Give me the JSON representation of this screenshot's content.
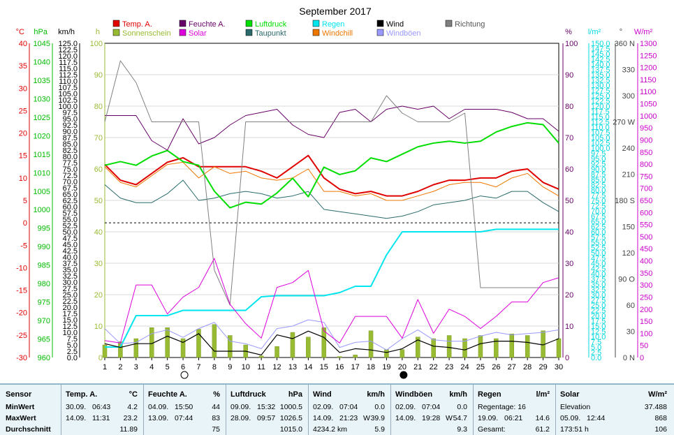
{
  "title": "September 2017",
  "legend": [
    {
      "label": "Temp. A.",
      "color": "#e00000"
    },
    {
      "label": "Feuchte A.",
      "color": "#660066"
    },
    {
      "label": "Luftdruck",
      "color": "#00dd00"
    },
    {
      "label": "Regen",
      "color": "#00e5ee"
    },
    {
      "label": "Wind",
      "color": "#000000"
    },
    {
      "label": "Richtung",
      "color": "#808080"
    },
    {
      "label": "Sonnenschein",
      "color": "#99bb33"
    },
    {
      "label": "Solar",
      "color": "#dd00dd"
    },
    {
      "label": "Taupunkt",
      "color": "#2a6a6a"
    },
    {
      "label": "Windchill",
      "color": "#ee7700"
    },
    {
      "label": "Windböen",
      "color": "#9999ff"
    }
  ],
  "units": {
    "temp": "°C",
    "press": "hPa",
    "wind": "km/h",
    "sun": "h",
    "hum": "%",
    "rain": "l/m²",
    "dir": "°",
    "solar": "W/m²"
  },
  "axes": {
    "temp": {
      "min": -30,
      "max": 40,
      "step": 5
    },
    "press": {
      "min": 960,
      "max": 1045,
      "step": 5
    },
    "wind": {
      "min": 0,
      "max": 125,
      "step": 2.5
    },
    "sun": {
      "min": 0,
      "max": 100,
      "step": 10
    },
    "hum": {
      "min": 0,
      "max": 100,
      "step": 10
    },
    "rain": {
      "min": 0,
      "max": 150,
      "step": 2.5
    },
    "dir": {
      "ticks": [
        {
          "v": 0,
          "l": "0 N"
        },
        {
          "v": 30,
          "l": "30"
        },
        {
          "v": 60,
          "l": "60"
        },
        {
          "v": 90,
          "l": "90 O"
        },
        {
          "v": 120,
          "l": "120"
        },
        {
          "v": 150,
          "l": "150"
        },
        {
          "v": 180,
          "l": "180 S"
        },
        {
          "v": 210,
          "l": "210"
        },
        {
          "v": 240,
          "l": "240"
        },
        {
          "v": 270,
          "l": "270 W"
        },
        {
          "v": 300,
          "l": "300"
        },
        {
          "v": 330,
          "l": "330"
        },
        {
          "v": 360,
          "l": "360 N"
        }
      ]
    },
    "solar": {
      "min": 0,
      "max": 1300,
      "step": 50
    }
  },
  "moon_phases": [
    {
      "day": 6,
      "phase": "full"
    },
    {
      "day": 20,
      "phase": "new"
    }
  ],
  "chart_data": {
    "type": "line",
    "title": "September 2017",
    "x": [
      1,
      2,
      3,
      4,
      5,
      6,
      7,
      8,
      9,
      10,
      11,
      12,
      13,
      14,
      15,
      16,
      17,
      18,
      19,
      20,
      21,
      22,
      23,
      24,
      25,
      26,
      27,
      28,
      29,
      30
    ],
    "series": [
      {
        "name": "Temp. A.",
        "unit": "°C",
        "axis": "temp",
        "values": [
          13.0,
          9.5,
          8.5,
          11.0,
          13.5,
          14.5,
          12.5,
          12.5,
          12.5,
          12.5,
          11.5,
          10.0,
          12.5,
          15.0,
          10.0,
          7.5,
          6.5,
          7.0,
          6.0,
          6.0,
          7.0,
          8.5,
          9.5,
          9.5,
          10.0,
          10.0,
          11.5,
          12.0,
          9.0,
          7.5
        ]
      },
      {
        "name": "Windchill",
        "unit": "°C",
        "axis": "temp",
        "values": [
          12.5,
          9.0,
          8.0,
          10.5,
          13.0,
          13.5,
          10.0,
          12.5,
          11.0,
          11.5,
          10.0,
          9.5,
          10.0,
          12.0,
          7.0,
          7.0,
          6.0,
          6.5,
          5.0,
          5.0,
          6.0,
          7.0,
          8.5,
          9.0,
          9.0,
          8.0,
          10.0,
          11.0,
          8.0,
          6.0
        ]
      },
      {
        "name": "Taupunkt",
        "unit": "°C",
        "axis": "temp",
        "values": [
          8.5,
          5.5,
          4.5,
          4.5,
          6.5,
          9.5,
          5.0,
          5.5,
          6.5,
          7.0,
          6.5,
          5.5,
          6.0,
          7.0,
          3.0,
          2.5,
          2.0,
          1.5,
          1.0,
          1.5,
          2.5,
          4.0,
          4.5,
          5.0,
          6.0,
          5.5,
          7.0,
          7.0,
          4.5,
          2.5
        ]
      },
      {
        "name": "Luftdruck",
        "unit": "hPa",
        "axis": "press",
        "values": [
          1012,
          1013,
          1012,
          1014.5,
          1016,
          1013,
          1012,
          1005,
          1000.5,
          1002,
          1001.5,
          1004.5,
          1008.5,
          1003.5,
          1011.5,
          1009.5,
          1010.5,
          1014,
          1013,
          1015,
          1017,
          1018,
          1018.5,
          1018,
          1018.5,
          1021,
          1022.5,
          1023.5,
          1023,
          1018
        ]
      },
      {
        "name": "Feuchte A.",
        "unit": "%",
        "axis": "hum",
        "values": [
          77,
          77,
          77,
          69,
          66,
          76,
          68,
          70,
          74,
          77,
          78,
          79,
          74,
          71,
          70,
          78,
          79,
          75,
          79,
          80,
          79,
          80,
          76,
          79,
          79,
          79,
          78,
          76,
          76,
          72
        ]
      },
      {
        "name": "Richtung",
        "unit": "°",
        "axis": "dir",
        "values": [
          270,
          340,
          315,
          270,
          270,
          270,
          270,
          100,
          60,
          270,
          270,
          270,
          270,
          270,
          270,
          270,
          270,
          270,
          300,
          280,
          270,
          270,
          270,
          280,
          80,
          80,
          80,
          80,
          80,
          80
        ]
      },
      {
        "name": "Regen",
        "unit": "l/m²",
        "axis": "rain",
        "values": [
          5.0,
          5.0,
          20.0,
          20.0,
          20.0,
          22.5,
          22.5,
          22.5,
          22.5,
          22.5,
          29.0,
          29.5,
          29.5,
          29.5,
          29.5,
          31.0,
          34.0,
          34.0,
          49.0,
          60.0,
          60.0,
          60.0,
          60.0,
          60.0,
          60.0,
          61.2,
          61.2,
          61.2,
          61.2,
          61.2
        ]
      },
      {
        "name": "Wind",
        "unit": "km/h",
        "axis": "wind",
        "values": [
          5.5,
          4.0,
          5.5,
          5.5,
          8.5,
          6.0,
          9.5,
          2.5,
          2.5,
          2.5,
          1.0,
          9.0,
          7.5,
          10.5,
          8.0,
          2.0,
          3.5,
          3.0,
          2.0,
          3.5,
          7.0,
          4.5,
          4.0,
          3.0,
          5.5,
          6.5,
          6.5,
          6.0,
          5.0,
          7.5
        ]
      },
      {
        "name": "Windböen",
        "unit": "km/h",
        "axis": "wind",
        "values": [
          11.5,
          5.5,
          6.0,
          9.5,
          11.0,
          8.0,
          11.5,
          14.0,
          6.5,
          5.5,
          3.5,
          11.5,
          12.5,
          15.0,
          14.0,
          4.0,
          6.0,
          6.5,
          3.0,
          7.5,
          11.0,
          7.0,
          6.5,
          6.5,
          8.5,
          10.0,
          9.0,
          9.5,
          10.0,
          11.0
        ]
      },
      {
        "name": "Solar",
        "unit": "W/m²",
        "axis": "solar",
        "values": [
          70,
          60,
          300,
          300,
          180,
          250,
          290,
          410,
          220,
          140,
          80,
          290,
          310,
          360,
          110,
          60,
          170,
          170,
          170,
          80,
          240,
          100,
          200,
          170,
          120,
          170,
          230,
          230,
          310,
          330
        ]
      },
      {
        "name": "Sonnenschein",
        "type": "bar",
        "unit": "h",
        "axis": "sun",
        "values": [
          4.0,
          5.0,
          6.0,
          9.5,
          9.5,
          6.0,
          9.0,
          10.5,
          7.0,
          4.0,
          0.5,
          3.5,
          8.0,
          6.5,
          9.5,
          0.3,
          0.8,
          8.5,
          2.5,
          2.5,
          6.5,
          6.0,
          7.0,
          6.0,
          7.0,
          6.0,
          7.5,
          7.0,
          8.5,
          6.0
        ]
      }
    ],
    "reference_lines": [
      {
        "axis": "temp",
        "value": 0,
        "style": "dashed"
      }
    ]
  },
  "stats": {
    "row_labels": [
      "Sensor",
      "MinWert",
      "MaxWert",
      "Durchschnitt"
    ],
    "temp": {
      "title": "Temp. A.",
      "unit": "°C",
      "min_date": "30.09.",
      "min_time": "06:43",
      "min": "4.2",
      "max_date": "14.09.",
      "max_time": "11:31",
      "max": "23.2",
      "avg": "11.89"
    },
    "hum": {
      "title": "Feuchte A.",
      "unit": "%",
      "min_date": "04.09.",
      "min_time": "15:50",
      "min": "44",
      "max_date": "13.09.",
      "max_time": "07:44",
      "max": "83",
      "avg": "75"
    },
    "press": {
      "title": "Luftdruck",
      "unit": "hPa",
      "min_date": "09.09.",
      "min_time": "15:32",
      "min": "1000.5",
      "max_date": "28.09.",
      "max_time": "09:57",
      "max": "1026.5",
      "avg": "1015.0"
    },
    "wind": {
      "title": "Wind",
      "unit": "km/h",
      "min_date": "02.09.",
      "min_time": "07:04",
      "min": "0.0",
      "max_date": "14.09.",
      "max_time": "21:23",
      "max_dir": "W",
      "max": "39.9",
      "total": "4234.2 km",
      "avg": "5.9"
    },
    "gust": {
      "title": "Windböen",
      "unit": "km/h",
      "min_date": "02.09.",
      "min_time": "07:04",
      "min": "0.0",
      "max_date": "14.09.",
      "max_time": "19:28",
      "max_dir": "W",
      "max": "54.7",
      "avg": "9.3"
    },
    "rain": {
      "title": "Regen",
      "unit": "l/m²",
      "row1": "Regentage: 16",
      "max_date": "19.09.",
      "max_time": "06:21",
      "max": "14.6",
      "total_label": "Gesamt:",
      "total": "61.2"
    },
    "solar": {
      "title": "Solar",
      "unit": "W/m²",
      "elev_label": "Elevation",
      "elev": "37.488",
      "max_date": "05.09.",
      "max_time": "12:44",
      "max": "868",
      "sun_hours": "173:51 h",
      "avg": "106"
    }
  }
}
